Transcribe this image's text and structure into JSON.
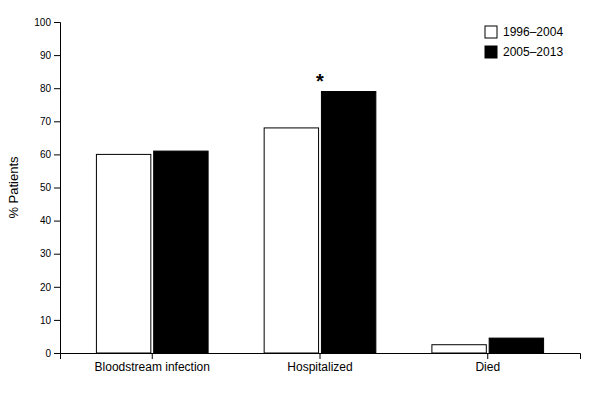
{
  "chart_data": {
    "type": "bar",
    "categories": [
      "Bloodstream infection",
      "Hospitalized",
      "Died"
    ],
    "series": [
      {
        "name": "1996–2004",
        "color": "#ffffff",
        "values": [
          60,
          68,
          2.5
        ]
      },
      {
        "name": "2005–2013",
        "color": "#000000",
        "values": [
          61,
          79,
          4.5
        ]
      }
    ],
    "ylabel": "% Patients",
    "ylim": [
      0,
      100
    ],
    "yticks": [
      0,
      10,
      20,
      30,
      40,
      50,
      60,
      70,
      80,
      90,
      100
    ],
    "annotations": [
      {
        "text": "*",
        "category": "Hospitalized"
      }
    ],
    "legend": "upper right",
    "grid": false
  }
}
